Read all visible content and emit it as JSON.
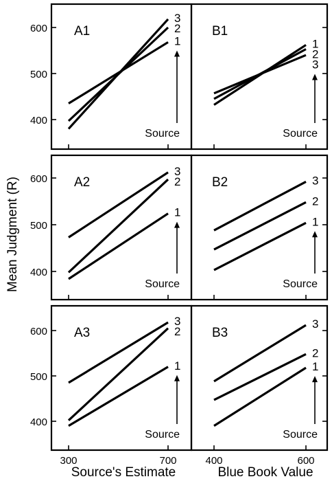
{
  "chart_data": [
    {
      "type": "line",
      "panel": "A1",
      "title": "A1",
      "x": [
        300,
        700
      ],
      "series": [
        {
          "name": "1",
          "values": [
            435,
            568
          ]
        },
        {
          "name": "2",
          "values": [
            397,
            600
          ]
        },
        {
          "name": "3",
          "values": [
            380,
            618
          ]
        }
      ],
      "source_label": "Source",
      "xlim": [
        300,
        700
      ],
      "ylim": [
        350,
        650
      ]
    },
    {
      "type": "line",
      "panel": "B1",
      "title": "B1",
      "x": [
        400,
        600
      ],
      "series": [
        {
          "name": "1",
          "values": [
            432,
            562
          ]
        },
        {
          "name": "2",
          "values": [
            445,
            553
          ]
        },
        {
          "name": "3",
          "values": [
            457,
            540
          ]
        }
      ],
      "source_label": "Source",
      "xlim": [
        400,
        600
      ],
      "ylim": [
        350,
        650
      ]
    },
    {
      "type": "line",
      "panel": "A2",
      "title": "A2",
      "x": [
        300,
        700
      ],
      "series": [
        {
          "name": "1",
          "values": [
            384,
            524
          ]
        },
        {
          "name": "2",
          "values": [
            398,
            597
          ]
        },
        {
          "name": "3",
          "values": [
            473,
            612
          ]
        }
      ],
      "source_label": "Source",
      "xlim": [
        300,
        700
      ],
      "ylim": [
        350,
        650
      ]
    },
    {
      "type": "line",
      "panel": "B2",
      "title": "B2",
      "x": [
        400,
        600
      ],
      "series": [
        {
          "name": "1",
          "values": [
            403,
            504
          ]
        },
        {
          "name": "2",
          "values": [
            447,
            548
          ]
        },
        {
          "name": "3",
          "values": [
            488,
            592
          ]
        }
      ],
      "source_label": "Source",
      "xlim": [
        400,
        600
      ],
      "ylim": [
        350,
        650
      ]
    },
    {
      "type": "line",
      "panel": "A3",
      "title": "A3",
      "x": [
        300,
        700
      ],
      "series": [
        {
          "name": "1",
          "values": [
            390,
            520
          ]
        },
        {
          "name": "2",
          "values": [
            402,
            605
          ]
        },
        {
          "name": "3",
          "values": [
            485,
            618
          ]
        }
      ],
      "source_label": "Source",
      "xlim": [
        300,
        700
      ],
      "ylim": [
        350,
        650
      ]
    },
    {
      "type": "line",
      "panel": "B3",
      "title": "B3",
      "x": [
        400,
        600
      ],
      "series": [
        {
          "name": "1",
          "values": [
            390,
            518
          ]
        },
        {
          "name": "2",
          "values": [
            447,
            548
          ]
        },
        {
          "name": "3",
          "values": [
            488,
            612
          ]
        }
      ],
      "source_label": "Source",
      "xlim": [
        400,
        600
      ],
      "ylim": [
        350,
        650
      ]
    }
  ],
  "axes": {
    "ylabel": "Mean Judgment (R)",
    "yticks": [
      400,
      500,
      600
    ],
    "xlabel_left": "Source's Estimate",
    "xlabel_right": "Blue Book Value",
    "xticks_left": [
      300,
      700
    ],
    "xticks_right": [
      400,
      600
    ]
  }
}
